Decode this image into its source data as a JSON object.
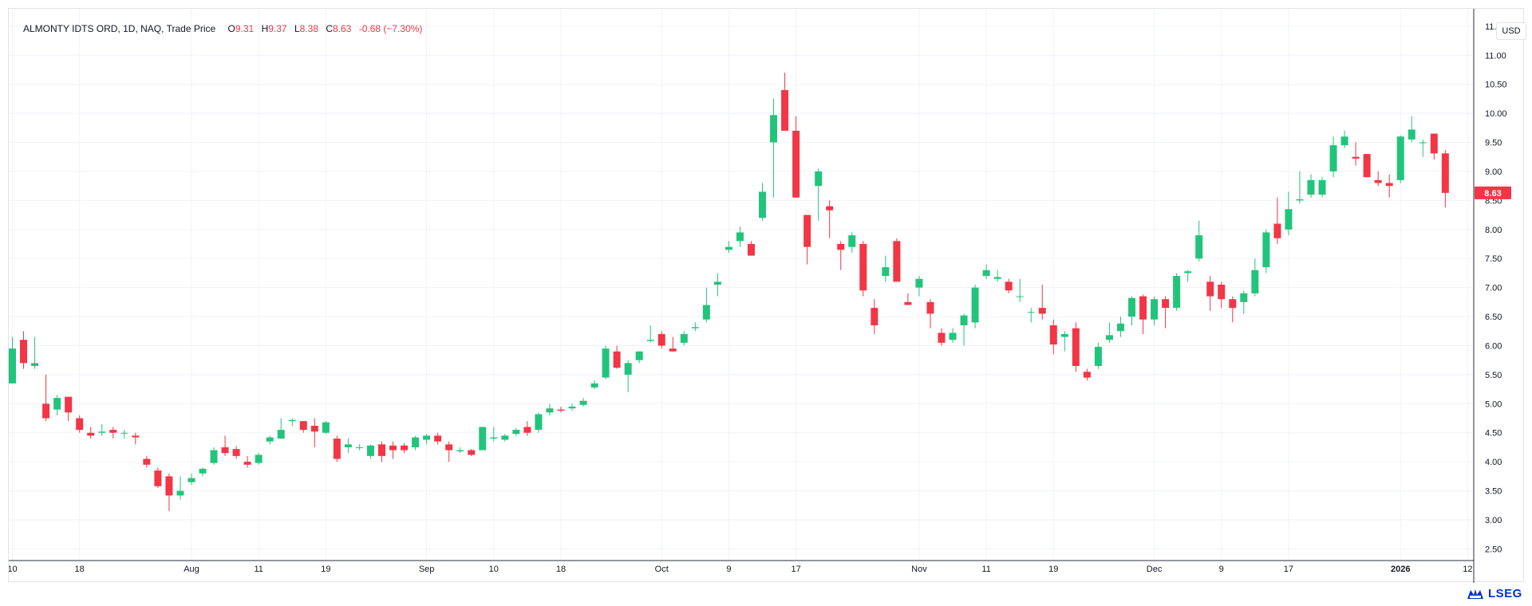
{
  "legend": {
    "symbol": "ALMONTY IDTS ORD, 1D, NAQ, Trade Price",
    "open_label": "O",
    "open": "9.31",
    "high_label": "H",
    "high": "9.37",
    "low_label": "L",
    "low": "8.38",
    "close_label": "C",
    "close": "8.63",
    "change": "-0.68 (−7.30%)"
  },
  "currency": "USD",
  "last_price_label": "8.63",
  "brand": "LSEG",
  "colors": {
    "up": "#22c47c",
    "down": "#f23645",
    "grid": "#f0f3fa",
    "axis_text": "#131722",
    "brand": "#0033cc"
  },
  "chart_data": {
    "type": "candlestick",
    "title": "ALMONTY IDTS ORD, 1D, NAQ, Trade Price",
    "ylim": [
      2.3,
      11.8
    ],
    "y_ticks": [
      "2.50",
      "3.00",
      "3.50",
      "4.00",
      "4.50",
      "5.00",
      "5.50",
      "6.00",
      "6.50",
      "7.00",
      "7.50",
      "8.00",
      "8.50",
      "9.00",
      "9.50",
      "10.00",
      "10.50",
      "11.00",
      "11.50"
    ],
    "x_ticks": [
      {
        "label": "10",
        "day": 0
      },
      {
        "label": "18",
        "day": 6
      },
      {
        "label": "Aug",
        "day": 16
      },
      {
        "label": "11",
        "day": 22
      },
      {
        "label": "19",
        "day": 28
      },
      {
        "label": "Sep",
        "day": 37
      },
      {
        "label": "10",
        "day": 43
      },
      {
        "label": "18",
        "day": 49
      },
      {
        "label": "Oct",
        "day": 58
      },
      {
        "label": "9",
        "day": 64
      },
      {
        "label": "17",
        "day": 70
      },
      {
        "label": "Nov",
        "day": 81
      },
      {
        "label": "11",
        "day": 87
      },
      {
        "label": "19",
        "day": 93
      },
      {
        "label": "Dec",
        "day": 102
      },
      {
        "label": "9",
        "day": 108
      },
      {
        "label": "17",
        "day": 114
      },
      {
        "label": "2026",
        "day": 124,
        "bold": true
      },
      {
        "label": "12",
        "day": 130
      }
    ],
    "candles": [
      [
        5.35,
        6.15,
        5.35,
        5.95
      ],
      [
        6.1,
        6.25,
        5.6,
        5.7
      ],
      [
        5.65,
        6.15,
        5.6,
        5.7
      ],
      [
        5.0,
        5.5,
        4.7,
        4.75
      ],
      [
        4.9,
        5.15,
        4.8,
        5.1
      ],
      [
        5.12,
        5.12,
        4.7,
        4.85
      ],
      [
        4.75,
        4.8,
        4.5,
        4.55
      ],
      [
        4.5,
        4.6,
        4.4,
        4.45
      ],
      [
        4.5,
        4.65,
        4.45,
        4.52
      ],
      [
        4.55,
        4.6,
        4.4,
        4.5
      ],
      [
        4.5,
        4.55,
        4.4,
        4.5
      ],
      [
        4.45,
        4.5,
        4.3,
        4.42
      ],
      [
        4.05,
        4.1,
        3.9,
        3.95
      ],
      [
        3.85,
        3.9,
        3.55,
        3.58
      ],
      [
        3.75,
        3.8,
        3.15,
        3.42
      ],
      [
        3.42,
        3.75,
        3.35,
        3.5
      ],
      [
        3.65,
        3.8,
        3.6,
        3.72
      ],
      [
        3.8,
        3.9,
        3.75,
        3.88
      ],
      [
        3.98,
        4.25,
        3.95,
        4.2
      ],
      [
        4.25,
        4.45,
        4.1,
        4.15
      ],
      [
        4.22,
        4.27,
        4.05,
        4.1
      ],
      [
        4.0,
        4.1,
        3.9,
        3.95
      ],
      [
        3.98,
        4.15,
        3.95,
        4.12
      ],
      [
        4.35,
        4.45,
        4.3,
        4.42
      ],
      [
        4.4,
        4.75,
        4.4,
        4.55
      ],
      [
        4.7,
        4.75,
        4.62,
        4.72
      ],
      [
        4.7,
        4.7,
        4.5,
        4.55
      ],
      [
        4.62,
        4.75,
        4.25,
        4.52
      ],
      [
        4.5,
        4.7,
        4.48,
        4.68
      ],
      [
        4.4,
        4.45,
        4.0,
        4.05
      ],
      [
        4.25,
        4.4,
        4.15,
        4.3
      ],
      [
        4.25,
        4.3,
        4.2,
        4.25
      ],
      [
        4.1,
        4.3,
        4.05,
        4.28
      ],
      [
        4.3,
        4.35,
        4.0,
        4.1
      ],
      [
        4.28,
        4.35,
        4.05,
        4.2
      ],
      [
        4.28,
        4.32,
        4.15,
        4.2
      ],
      [
        4.25,
        4.45,
        4.2,
        4.42
      ],
      [
        4.38,
        4.48,
        4.3,
        4.45
      ],
      [
        4.45,
        4.5,
        4.3,
        4.35
      ],
      [
        4.3,
        4.35,
        4.0,
        4.2
      ],
      [
        4.18,
        4.25,
        4.15,
        4.2
      ],
      [
        4.2,
        4.22,
        4.1,
        4.12
      ],
      [
        4.2,
        4.6,
        4.2,
        4.6
      ],
      [
        4.4,
        4.6,
        4.35,
        4.42
      ],
      [
        4.38,
        4.48,
        4.35,
        4.45
      ],
      [
        4.48,
        4.58,
        4.45,
        4.55
      ],
      [
        4.6,
        4.7,
        4.45,
        4.5
      ],
      [
        4.55,
        4.85,
        4.5,
        4.82
      ],
      [
        4.85,
        5.0,
        4.8,
        4.92
      ],
      [
        4.9,
        4.95,
        4.85,
        4.88
      ],
      [
        4.92,
        5.0,
        4.88,
        4.95
      ],
      [
        4.98,
        5.1,
        4.95,
        5.05
      ],
      [
        5.28,
        5.4,
        5.25,
        5.35
      ],
      [
        5.45,
        6.0,
        5.42,
        5.95
      ],
      [
        5.9,
        6.0,
        5.6,
        5.62
      ],
      [
        5.5,
        5.75,
        5.2,
        5.7
      ],
      [
        5.75,
        5.9,
        5.7,
        5.9
      ],
      [
        6.08,
        6.35,
        6.05,
        6.1
      ],
      [
        6.2,
        6.25,
        5.95,
        6.0
      ],
      [
        5.95,
        6.15,
        5.9,
        5.9
      ],
      [
        6.05,
        6.25,
        6.0,
        6.2
      ],
      [
        6.3,
        6.4,
        6.25,
        6.32
      ],
      [
        6.45,
        7.0,
        6.4,
        6.7
      ],
      [
        7.05,
        7.25,
        6.85,
        7.1
      ],
      [
        7.65,
        7.8,
        7.6,
        7.7
      ],
      [
        7.8,
        8.05,
        7.7,
        7.95
      ],
      [
        7.75,
        7.8,
        7.55,
        7.55
      ],
      [
        8.2,
        8.8,
        8.15,
        8.65
      ],
      [
        9.5,
        10.25,
        8.55,
        9.97
      ],
      [
        10.4,
        10.7,
        9.7,
        9.7
      ],
      [
        9.7,
        9.95,
        8.55,
        8.55
      ],
      [
        8.25,
        8.25,
        7.4,
        7.7
      ],
      [
        8.75,
        9.05,
        8.15,
        9.0
      ],
      [
        8.4,
        8.5,
        7.85,
        8.33
      ],
      [
        7.75,
        7.8,
        7.3,
        7.65
      ],
      [
        7.7,
        7.95,
        7.6,
        7.9
      ],
      [
        7.75,
        7.8,
        6.85,
        6.95
      ],
      [
        6.65,
        6.8,
        6.2,
        6.35
      ],
      [
        7.2,
        7.55,
        7.1,
        7.35
      ],
      [
        7.8,
        7.85,
        7.1,
        7.1
      ],
      [
        6.75,
        6.9,
        6.7,
        6.7
      ],
      [
        7.0,
        7.2,
        6.85,
        7.15
      ],
      [
        6.75,
        6.8,
        6.3,
        6.55
      ],
      [
        6.22,
        6.3,
        6.0,
        6.05
      ],
      [
        6.1,
        6.3,
        6.05,
        6.22
      ],
      [
        6.35,
        6.55,
        6.0,
        6.52
      ],
      [
        6.4,
        7.05,
        6.3,
        7.0
      ],
      [
        7.2,
        7.4,
        7.15,
        7.3
      ],
      [
        7.15,
        7.3,
        7.1,
        7.18
      ],
      [
        7.1,
        7.15,
        6.9,
        6.95
      ],
      [
        6.85,
        7.15,
        6.75,
        6.85
      ],
      [
        6.58,
        6.65,
        6.4,
        6.58
      ],
      [
        6.65,
        7.05,
        6.45,
        6.55
      ],
      [
        6.35,
        6.45,
        5.85,
        6.02
      ],
      [
        6.15,
        6.25,
        5.9,
        6.2
      ],
      [
        6.3,
        6.4,
        5.55,
        5.65
      ],
      [
        5.55,
        5.6,
        5.4,
        5.45
      ],
      [
        5.65,
        6.05,
        5.6,
        5.98
      ],
      [
        6.1,
        6.4,
        6.05,
        6.18
      ],
      [
        6.25,
        6.5,
        6.15,
        6.38
      ],
      [
        6.5,
        6.85,
        6.35,
        6.82
      ],
      [
        6.85,
        6.88,
        6.2,
        6.45
      ],
      [
        6.45,
        6.85,
        6.35,
        6.8
      ],
      [
        6.8,
        6.85,
        6.3,
        6.65
      ],
      [
        6.65,
        7.25,
        6.6,
        7.2
      ],
      [
        7.25,
        7.3,
        7.1,
        7.28
      ],
      [
        7.5,
        8.15,
        7.45,
        7.9
      ],
      [
        7.1,
        7.2,
        6.6,
        6.85
      ],
      [
        7.05,
        7.1,
        6.65,
        6.8
      ],
      [
        6.8,
        6.85,
        6.4,
        6.65
      ],
      [
        6.75,
        6.95,
        6.55,
        6.9
      ],
      [
        6.9,
        7.5,
        6.85,
        7.3
      ],
      [
        7.35,
        8.0,
        7.25,
        7.95
      ],
      [
        8.1,
        8.55,
        7.75,
        7.85
      ],
      [
        8.0,
        8.65,
        7.9,
        8.35
      ],
      [
        8.5,
        9.0,
        8.45,
        8.52
      ],
      [
        8.6,
        8.95,
        8.55,
        8.85
      ],
      [
        8.6,
        8.9,
        8.55,
        8.85
      ],
      [
        9.0,
        9.6,
        8.9,
        9.45
      ],
      [
        9.45,
        9.7,
        9.4,
        9.6
      ],
      [
        9.25,
        9.5,
        9.1,
        9.22
      ],
      [
        9.3,
        9.3,
        8.9,
        8.9
      ],
      [
        8.85,
        9.0,
        8.75,
        8.8
      ],
      [
        8.8,
        8.95,
        8.55,
        8.75
      ],
      [
        8.85,
        9.62,
        8.8,
        9.6
      ],
      [
        9.55,
        9.95,
        9.5,
        9.72
      ],
      [
        9.5,
        9.55,
        9.25,
        9.5
      ],
      [
        9.65,
        9.65,
        9.2,
        9.31
      ],
      [
        9.31,
        9.37,
        8.38,
        8.63
      ]
    ]
  }
}
